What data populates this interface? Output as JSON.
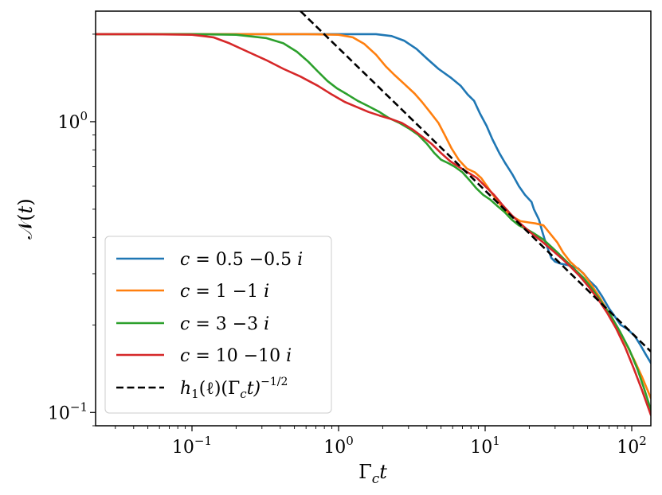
{
  "chart_data": {
    "type": "line",
    "scale": {
      "x": "log",
      "y": "log"
    },
    "xlim": [
      0.022,
      135
    ],
    "ylim": [
      0.09,
      2.4
    ],
    "xlabel": "Γ_c t",
    "ylabel": "N(t)",
    "x_ticks": [
      {
        "value": 0.1,
        "base": "10",
        "exp": "−1"
      },
      {
        "value": 1,
        "base": "10",
        "exp": "0"
      },
      {
        "value": 10,
        "base": "10",
        "exp": "1"
      },
      {
        "value": 100,
        "base": "10",
        "exp": "2"
      }
    ],
    "y_ticks": [
      {
        "value": 0.1,
        "base": "10",
        "exp": "−1"
      },
      {
        "value": 1,
        "base": "10",
        "exp": "0"
      }
    ],
    "legend_position": "lower-left",
    "series": [
      {
        "name": "c = 0.5 −0.5 i",
        "color": "#1f77b4",
        "points": [
          [
            0.022,
            2.0
          ],
          [
            0.05,
            2.0
          ],
          [
            0.1,
            2.0
          ],
          [
            0.3,
            2.0
          ],
          [
            0.6,
            2.0
          ],
          [
            1.0,
            2.0
          ],
          [
            1.8,
            2.0
          ],
          [
            2.3,
            1.97
          ],
          [
            2.8,
            1.9
          ],
          [
            3.4,
            1.78
          ],
          [
            4.0,
            1.65
          ],
          [
            4.8,
            1.52
          ],
          [
            5.8,
            1.42
          ],
          [
            6.8,
            1.33
          ],
          [
            7.6,
            1.24
          ],
          [
            8.4,
            1.18
          ],
          [
            9.2,
            1.07
          ],
          [
            10.2,
            0.97
          ],
          [
            11.2,
            0.87
          ],
          [
            12.5,
            0.78
          ],
          [
            13.7,
            0.72
          ],
          [
            15.3,
            0.66
          ],
          [
            17.0,
            0.6
          ],
          [
            18.7,
            0.56
          ],
          [
            20.7,
            0.53
          ],
          [
            21.5,
            0.5
          ],
          [
            23.3,
            0.46
          ],
          [
            24.5,
            0.42
          ],
          [
            26.0,
            0.38
          ],
          [
            28.3,
            0.34
          ],
          [
            30.0,
            0.33
          ],
          [
            32.7,
            0.325
          ],
          [
            38.0,
            0.32
          ],
          [
            43.0,
            0.313
          ],
          [
            47.0,
            0.3
          ],
          [
            51.0,
            0.285
          ],
          [
            57.0,
            0.27
          ],
          [
            63.0,
            0.25
          ],
          [
            70.0,
            0.228
          ],
          [
            76.0,
            0.215
          ],
          [
            84.0,
            0.2
          ],
          [
            94.0,
            0.193
          ],
          [
            105.0,
            0.183
          ],
          [
            115.0,
            0.17
          ],
          [
            125.0,
            0.158
          ],
          [
            135.0,
            0.148
          ]
        ]
      },
      {
        "name": "c = 1 −1 i",
        "color": "#ff7f0e",
        "points": [
          [
            0.022,
            2.0
          ],
          [
            0.05,
            2.0
          ],
          [
            0.1,
            2.0
          ],
          [
            0.3,
            2.0
          ],
          [
            0.6,
            2.0
          ],
          [
            1.0,
            1.99
          ],
          [
            1.25,
            1.95
          ],
          [
            1.5,
            1.85
          ],
          [
            1.8,
            1.7
          ],
          [
            2.1,
            1.55
          ],
          [
            2.4,
            1.45
          ],
          [
            2.8,
            1.35
          ],
          [
            3.3,
            1.25
          ],
          [
            3.7,
            1.17
          ],
          [
            4.2,
            1.08
          ],
          [
            4.8,
            0.99
          ],
          [
            5.3,
            0.9
          ],
          [
            5.9,
            0.81
          ],
          [
            6.6,
            0.74
          ],
          [
            7.5,
            0.69
          ],
          [
            8.5,
            0.67
          ],
          [
            9.4,
            0.64
          ],
          [
            10.3,
            0.6
          ],
          [
            11.3,
            0.56
          ],
          [
            12.6,
            0.52
          ],
          [
            14.0,
            0.49
          ],
          [
            15.6,
            0.47
          ],
          [
            17.4,
            0.455
          ],
          [
            20.0,
            0.45
          ],
          [
            22.0,
            0.447
          ],
          [
            25.0,
            0.44
          ],
          [
            28.0,
            0.41
          ],
          [
            31.0,
            0.385
          ],
          [
            34.0,
            0.355
          ],
          [
            38.0,
            0.33
          ],
          [
            42.0,
            0.315
          ],
          [
            47.0,
            0.3
          ],
          [
            53.0,
            0.275
          ],
          [
            60.0,
            0.25
          ],
          [
            68.0,
            0.225
          ],
          [
            78.0,
            0.2
          ],
          [
            90.0,
            0.175
          ],
          [
            103.0,
            0.153
          ],
          [
            118.0,
            0.132
          ],
          [
            135.0,
            0.112
          ]
        ]
      },
      {
        "name": "c = 3 −3 i",
        "color": "#2ca02c",
        "points": [
          [
            0.022,
            2.0
          ],
          [
            0.05,
            2.0
          ],
          [
            0.1,
            2.0
          ],
          [
            0.2,
            1.99
          ],
          [
            0.32,
            1.94
          ],
          [
            0.42,
            1.86
          ],
          [
            0.52,
            1.74
          ],
          [
            0.62,
            1.61
          ],
          [
            0.72,
            1.49
          ],
          [
            0.84,
            1.38
          ],
          [
            0.98,
            1.3
          ],
          [
            1.15,
            1.24
          ],
          [
            1.35,
            1.18
          ],
          [
            1.6,
            1.13
          ],
          [
            1.9,
            1.08
          ],
          [
            2.2,
            1.03
          ],
          [
            2.6,
            0.99
          ],
          [
            3.0,
            0.95
          ],
          [
            3.5,
            0.9
          ],
          [
            4.0,
            0.84
          ],
          [
            4.5,
            0.78
          ],
          [
            5.0,
            0.74
          ],
          [
            5.6,
            0.72
          ],
          [
            6.2,
            0.7
          ],
          [
            7.0,
            0.67
          ],
          [
            7.8,
            0.63
          ],
          [
            8.7,
            0.59
          ],
          [
            9.7,
            0.56
          ],
          [
            10.8,
            0.54
          ],
          [
            12.0,
            0.515
          ],
          [
            13.5,
            0.49
          ],
          [
            15.2,
            0.46
          ],
          [
            17.0,
            0.44
          ],
          [
            19.5,
            0.425
          ],
          [
            22.0,
            0.41
          ],
          [
            25.0,
            0.393
          ],
          [
            28.5,
            0.37
          ],
          [
            32.0,
            0.35
          ],
          [
            36.0,
            0.33
          ],
          [
            41.0,
            0.31
          ],
          [
            47.0,
            0.29
          ],
          [
            54.0,
            0.265
          ],
          [
            62.0,
            0.24
          ],
          [
            72.0,
            0.215
          ],
          [
            83.0,
            0.19
          ],
          [
            96.0,
            0.165
          ],
          [
            110.0,
            0.14
          ],
          [
            122.0,
            0.12
          ],
          [
            135.0,
            0.102
          ]
        ]
      },
      {
        "name": "c = 10 −10 i",
        "color": "#d62728",
        "points": [
          [
            0.022,
            2.0
          ],
          [
            0.05,
            2.0
          ],
          [
            0.1,
            1.99
          ],
          [
            0.14,
            1.95
          ],
          [
            0.18,
            1.86
          ],
          [
            0.24,
            1.74
          ],
          [
            0.32,
            1.63
          ],
          [
            0.42,
            1.52
          ],
          [
            0.55,
            1.43
          ],
          [
            0.72,
            1.33
          ],
          [
            0.9,
            1.24
          ],
          [
            1.1,
            1.17
          ],
          [
            1.35,
            1.12
          ],
          [
            1.6,
            1.08
          ],
          [
            1.9,
            1.05
          ],
          [
            2.3,
            1.02
          ],
          [
            2.7,
            0.99
          ],
          [
            3.2,
            0.94
          ],
          [
            3.7,
            0.89
          ],
          [
            4.3,
            0.84
          ],
          [
            5.0,
            0.78
          ],
          [
            5.8,
            0.73
          ],
          [
            6.6,
            0.7
          ],
          [
            7.6,
            0.67
          ],
          [
            8.8,
            0.64
          ],
          [
            10.0,
            0.6
          ],
          [
            11.5,
            0.56
          ],
          [
            13.0,
            0.52
          ],
          [
            15.0,
            0.48
          ],
          [
            17.5,
            0.445
          ],
          [
            20.5,
            0.415
          ],
          [
            24.0,
            0.39
          ],
          [
            28.0,
            0.365
          ],
          [
            33.0,
            0.34
          ],
          [
            38.0,
            0.318
          ],
          [
            44.0,
            0.295
          ],
          [
            51.0,
            0.27
          ],
          [
            59.0,
            0.245
          ],
          [
            68.0,
            0.22
          ],
          [
            78.0,
            0.195
          ],
          [
            90.0,
            0.168
          ],
          [
            103.0,
            0.142
          ],
          [
            117.0,
            0.12
          ],
          [
            135.0,
            0.098
          ]
        ]
      },
      {
        "name": "h₁(ℓ)(Γ_c t)^{−1/2}",
        "color": "#000000",
        "dashed": true,
        "points": [
          [
            0.55,
            2.4
          ],
          [
            135.0,
            0.162
          ]
        ]
      }
    ],
    "legend": [
      {
        "lhs": "c",
        "eq": " = ",
        "rhs": "0.5 −0.5 ",
        "unit": "i",
        "color": "#1f77b4",
        "dashed": false
      },
      {
        "lhs": "c",
        "eq": " = ",
        "rhs": "1 −1 ",
        "unit": "i",
        "color": "#ff7f0e",
        "dashed": false
      },
      {
        "lhs": "c",
        "eq": " = ",
        "rhs": "3 −3 ",
        "unit": "i",
        "color": "#2ca02c",
        "dashed": false
      },
      {
        "lhs": "c",
        "eq": " = ",
        "rhs": "10 −10 ",
        "unit": "i",
        "color": "#d62728",
        "dashed": false
      },
      {
        "lhs": "h",
        "sub": "1",
        "mid": "(ℓ)(Γ",
        "sub2": "c",
        "tail": "t)",
        "sup": "−1/2",
        "color": "#000000",
        "dashed": true
      }
    ],
    "axis_label_parts": {
      "x_main": "Γ",
      "x_sub": "c",
      "x_tail": "t",
      "y_main": "𝒩(",
      "y_var": "t",
      "y_close": ")"
    }
  }
}
